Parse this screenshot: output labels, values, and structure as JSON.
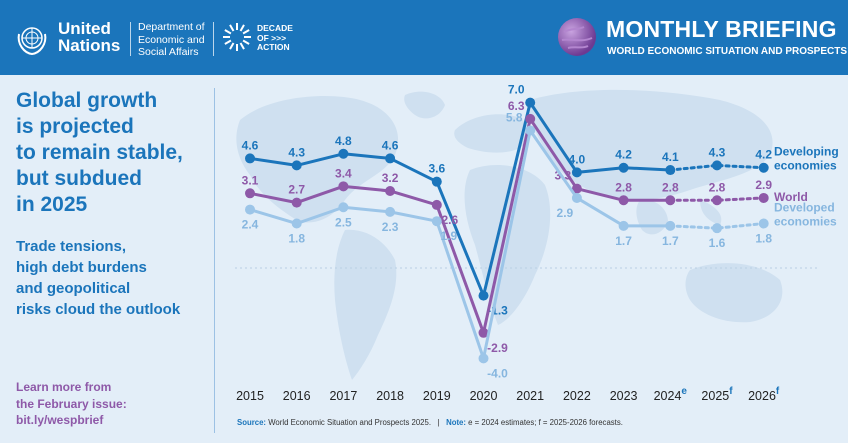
{
  "header": {
    "un_line1": "United",
    "un_line2": "Nations",
    "desa_line1": "Department of",
    "desa_line2": "Economic and",
    "desa_line3": "Social Affairs",
    "decade_line1": "DECADE",
    "decade_line2": "OF >>>",
    "decade_line3": "ACTION",
    "title": "MONTHLY BRIEFING",
    "subtitle": "WORLD ECONOMIC SITUATION AND PROSPECTS",
    "icons": [
      "un-emblem-icon",
      "decade-of-action-icon",
      "globe-icon"
    ]
  },
  "left_panel": {
    "title_lines": [
      "Global growth",
      "is projected",
      "to remain stable,",
      "but subdued",
      "in 2025"
    ],
    "subtitle_lines": [
      "Trade tensions,",
      "high debt burdens",
      "and geopolitical",
      "risks cloud the outlook"
    ],
    "learn_lines": [
      "Learn more from",
      "the February issue:",
      "bit.ly/wespbrief"
    ]
  },
  "footer": {
    "source_label": "Source:",
    "source_text": "World Economic Situation and Prospects 2025.",
    "separator": "|",
    "note_label": "Note:",
    "note_text": "e = 2024 estimates; f = 2025-2026 forecasts."
  },
  "colors": {
    "header_bg": "#1b75bb",
    "page_bg": "#e3eef8",
    "developing": "#1b75bb",
    "world": "#8e59a8",
    "developed": "#9cc5e8",
    "label_purple": "#8e59a8"
  },
  "chart_data": {
    "type": "line",
    "x": [
      "2015",
      "2016",
      "2017",
      "2018",
      "2019",
      "2020",
      "2021",
      "2022",
      "2023",
      "2024",
      "2025",
      "2026"
    ],
    "x_superscripts": [
      "",
      "",
      "",
      "",
      "",
      "",
      "",
      "",
      "",
      "e",
      "f",
      "f"
    ],
    "estimate_from_index": 9,
    "ylim": [
      -4.5,
      7.5
    ],
    "grid": false,
    "legend_placement": "right, inline at line ends",
    "series": [
      {
        "name_lines": [
          "Developing",
          "economies"
        ],
        "key": "developing",
        "color": "#1b75bb",
        "values": [
          4.6,
          4.3,
          4.8,
          4.6,
          3.6,
          -1.3,
          7.0,
          4.0,
          4.2,
          4.1,
          4.3,
          4.2
        ],
        "labels": [
          "4.6",
          "4.3",
          "4.8",
          "4.6",
          "3.6",
          "-1.3",
          "7.0",
          "4.0",
          "4.2",
          "4.1",
          "4.3",
          "4.2"
        ]
      },
      {
        "name_lines": [
          "World"
        ],
        "key": "world",
        "color": "#8e59a8",
        "values": [
          3.1,
          2.7,
          3.4,
          3.2,
          2.6,
          -2.9,
          6.3,
          3.3,
          2.8,
          2.8,
          2.8,
          2.9
        ],
        "labels": [
          "3.1",
          "2.7",
          "3.4",
          "3.2",
          "2.6",
          "-2.9",
          "6.3",
          "3.3",
          "2.8",
          "2.8",
          "2.8",
          "2.9"
        ]
      },
      {
        "name_lines": [
          "Developed",
          "economies"
        ],
        "key": "developed",
        "color": "#9cc5e8",
        "values": [
          2.4,
          1.8,
          2.5,
          2.3,
          1.9,
          -4.0,
          5.8,
          2.9,
          1.7,
          1.7,
          1.6,
          1.8
        ],
        "labels": [
          "2.4",
          "1.8",
          "2.5",
          "2.3",
          "1.9",
          "-4.0",
          "5.8",
          "2.9",
          "1.7",
          "1.7",
          "1.6",
          "1.8"
        ]
      }
    ]
  }
}
